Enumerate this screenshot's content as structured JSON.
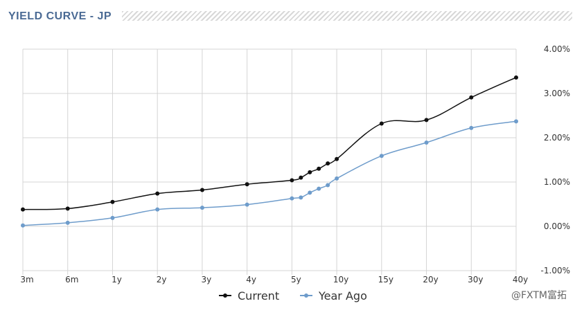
{
  "page": {
    "title": "YIELD CURVE - JP"
  },
  "watermark": "@FXTM富拓",
  "colors": {
    "current": "#111111",
    "year_ago": "#6e9ccb",
    "grid": "#d4d4d4",
    "title": "#4a6a94"
  },
  "chart_data": {
    "type": "line",
    "title": "",
    "xlabel": "",
    "ylabel": "",
    "ylim": [
      -1,
      4
    ],
    "y_ticks": [
      -1,
      0,
      1,
      2,
      3,
      4
    ],
    "y_tick_labels": [
      "-1.00%",
      "0.00%",
      "1.00%",
      "2.00%",
      "3.00%",
      "4.00%"
    ],
    "x_ticks": [
      {
        "label": "3m",
        "years": 0.25
      },
      {
        "label": "6m",
        "years": 0.5
      },
      {
        "label": "1y",
        "years": 1
      },
      {
        "label": "2y",
        "years": 2
      },
      {
        "label": "3y",
        "years": 3
      },
      {
        "label": "4y",
        "years": 4
      },
      {
        "label": "5y",
        "years": 5
      },
      {
        "label": "10y",
        "years": 10
      },
      {
        "label": "15y",
        "years": 15
      },
      {
        "label": "20y",
        "years": 20
      },
      {
        "label": "30y",
        "years": 30
      },
      {
        "label": "40y",
        "years": 40
      }
    ],
    "grid": true,
    "legend_position": "bottom-center",
    "series": [
      {
        "name": "Current",
        "points": [
          {
            "x": 0.25,
            "y": 0.38
          },
          {
            "x": 0.5,
            "y": 0.4
          },
          {
            "x": 1,
            "y": 0.55
          },
          {
            "x": 2,
            "y": 0.74
          },
          {
            "x": 3,
            "y": 0.82
          },
          {
            "x": 4,
            "y": 0.95
          },
          {
            "x": 5,
            "y": 1.04
          },
          {
            "x": 6,
            "y": 1.1
          },
          {
            "x": 7,
            "y": 1.22
          },
          {
            "x": 8,
            "y": 1.3
          },
          {
            "x": 9,
            "y": 1.42
          },
          {
            "x": 10,
            "y": 1.52
          },
          {
            "x": 15,
            "y": 2.32
          },
          {
            "x": 20,
            "y": 2.4
          },
          {
            "x": 30,
            "y": 2.91
          },
          {
            "x": 40,
            "y": 3.36
          }
        ]
      },
      {
        "name": "Year Ago",
        "points": [
          {
            "x": 0.25,
            "y": 0.02
          },
          {
            "x": 0.5,
            "y": 0.08
          },
          {
            "x": 1,
            "y": 0.19
          },
          {
            "x": 2,
            "y": 0.38
          },
          {
            "x": 3,
            "y": 0.42
          },
          {
            "x": 4,
            "y": 0.49
          },
          {
            "x": 5,
            "y": 0.63
          },
          {
            "x": 6,
            "y": 0.65
          },
          {
            "x": 7,
            "y": 0.76
          },
          {
            "x": 8,
            "y": 0.85
          },
          {
            "x": 9,
            "y": 0.93
          },
          {
            "x": 10,
            "y": 1.08
          },
          {
            "x": 15,
            "y": 1.59
          },
          {
            "x": 20,
            "y": 1.89
          },
          {
            "x": 30,
            "y": 2.22
          },
          {
            "x": 40,
            "y": 2.37
          }
        ]
      }
    ]
  }
}
